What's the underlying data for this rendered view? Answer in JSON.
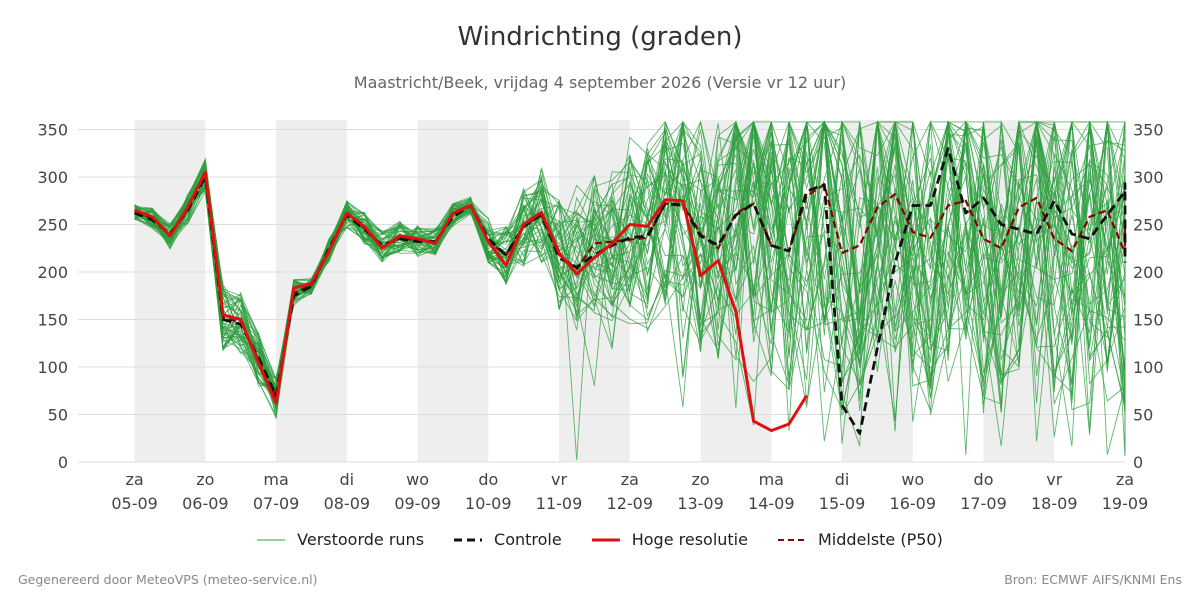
{
  "chart_data": {
    "type": "line",
    "title": "Windrichting (graden)",
    "subtitle": "Maastricht/Beek, vrijdag  4 september 2026 (Versie vr 12 uur)",
    "ylim": [
      0,
      360
    ],
    "yticks": [
      0,
      50,
      100,
      150,
      200,
      250,
      300,
      350
    ],
    "xlim": [
      -0.8,
      14.0
    ],
    "x_tick_days": [
      "za",
      "zo",
      "ma",
      "di",
      "wo",
      "do",
      "vr",
      "za",
      "zo",
      "ma",
      "di",
      "wo",
      "do",
      "vr",
      "za"
    ],
    "x_tick_dates": [
      "05-09",
      "06-09",
      "07-09",
      "08-09",
      "09-09",
      "10-09",
      "11-09",
      "12-09",
      "13-09",
      "14-09",
      "15-09",
      "16-09",
      "17-09",
      "18-09",
      "19-09"
    ],
    "shaded_days": [
      [
        0,
        1
      ],
      [
        2,
        3
      ],
      [
        4,
        5
      ],
      [
        6,
        7
      ],
      [
        8,
        9
      ],
      [
        10,
        11
      ],
      [
        12,
        13
      ],
      [
        14,
        14.5
      ]
    ],
    "legend": [
      "Verstoorde runs",
      "Controle",
      "Hoge resolutie",
      "Middelste (P50)"
    ],
    "colors": {
      "ensemble": "#2e9e3f",
      "control": "#111111",
      "high_res": "#e01010",
      "median": "#8b0000",
      "shade": "#eeeeee",
      "grid": "#dddddd"
    },
    "series": [
      {
        "name": "Hoge resolutie",
        "x": [
          0,
          0.25,
          0.5,
          0.75,
          1.0,
          1.25,
          1.5,
          1.75,
          2.0,
          2.25,
          2.5,
          2.75,
          3.0,
          3.25,
          3.5,
          3.75,
          4.0,
          4.25,
          4.5,
          4.75,
          5.0,
          5.25,
          5.5,
          5.75,
          6.0,
          6.25,
          6.5,
          6.75,
          7.0,
          7.25,
          7.5,
          7.75,
          8.0,
          8.25,
          8.5,
          8.75,
          9.0,
          9.25,
          9.5
        ],
        "y": [
          265,
          258,
          238,
          268,
          305,
          155,
          150,
          105,
          62,
          183,
          188,
          222,
          262,
          248,
          225,
          238,
          235,
          230,
          262,
          270,
          232,
          207,
          250,
          263,
          220,
          198,
          215,
          230,
          250,
          248,
          276,
          275,
          196,
          212,
          158,
          43,
          33,
          40,
          70
        ]
      },
      {
        "name": "Controle",
        "x": [
          0,
          0.25,
          0.5,
          0.75,
          1.0,
          1.25,
          1.5,
          1.75,
          2.0,
          2.25,
          2.5,
          2.75,
          3.0,
          3.25,
          3.5,
          3.75,
          4.0,
          4.25,
          4.5,
          4.75,
          5.0,
          5.25,
          5.5,
          5.75,
          6.0,
          6.25,
          6.5,
          6.75,
          7.0,
          7.25,
          7.5,
          7.75,
          8.0,
          8.25,
          8.5,
          8.75,
          9.0,
          9.25,
          9.5,
          9.75,
          10.0,
          10.25,
          10.5,
          10.75,
          11.0,
          11.25,
          11.5,
          11.75,
          12.0,
          12.25,
          12.5,
          12.75,
          13.0,
          13.25,
          13.5,
          13.75,
          14.0,
          14.25,
          14.5
        ],
        "y": [
          262,
          255,
          240,
          265,
          300,
          150,
          145,
          110,
          70,
          175,
          185,
          225,
          260,
          245,
          228,
          235,
          232,
          232,
          258,
          270,
          235,
          218,
          248,
          260,
          215,
          205,
          218,
          228,
          236,
          238,
          272,
          270,
          238,
          228,
          260,
          272,
          228,
          222,
          285,
          292,
          60,
          30,
          120,
          210,
          270,
          270,
          330,
          262,
          278,
          250,
          245,
          240,
          275,
          240,
          235,
          260,
          285,
          293,
          210
        ]
      },
      {
        "name": "Middelste (P50)",
        "x": [
          0,
          0.25,
          0.5,
          0.75,
          1.0,
          1.25,
          1.5,
          1.75,
          2.0,
          2.25,
          2.5,
          2.75,
          3.0,
          3.25,
          3.5,
          3.75,
          4.0,
          4.25,
          4.5,
          4.75,
          5.0,
          5.25,
          5.5,
          5.75,
          6.0,
          6.25,
          6.5,
          6.75,
          7.0,
          7.25,
          7.5,
          7.75,
          8.0,
          8.25,
          8.5,
          8.75,
          9.0,
          9.25,
          9.5,
          9.75,
          10.0,
          10.25,
          10.5,
          10.75,
          11.0,
          11.25,
          11.5,
          11.75,
          12.0,
          12.25,
          12.5,
          12.75,
          13.0,
          13.25,
          13.5,
          13.75,
          14.0,
          14.25,
          14.5
        ],
        "y": [
          263,
          257,
          238,
          266,
          302,
          152,
          147,
          108,
          68,
          178,
          186,
          223,
          261,
          246,
          226,
          236,
          233,
          232,
          260,
          270,
          232,
          218,
          248,
          260,
          218,
          203,
          230,
          232,
          234,
          236,
          272,
          272,
          240,
          225,
          262,
          272,
          228,
          222,
          280,
          292,
          220,
          228,
          268,
          282,
          242,
          236,
          270,
          275,
          235,
          225,
          268,
          278,
          235,
          222,
          258,
          265,
          220,
          218,
          255
        ]
      }
    ]
  },
  "footer": {
    "left": "Gegenereerd door MeteoVPS (meteo-service.nl)",
    "right": "Bron: ECMWF AIFS/KNMI Ens"
  }
}
